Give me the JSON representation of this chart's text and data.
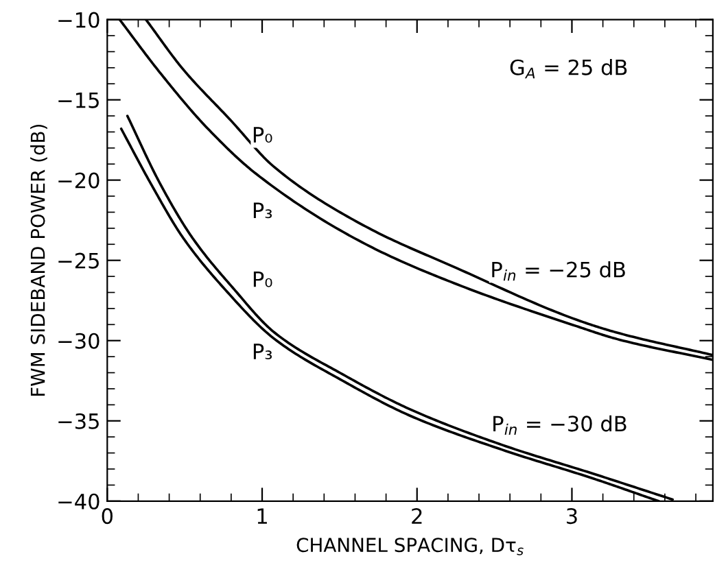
{
  "chart_data": {
    "type": "line",
    "xlabel": "CHANNEL SPACING, Dτ$_{s}$",
    "ylabel": "FWM SIDEBAND POWER (dB)",
    "xlim": [
      0,
      3.91
    ],
    "ylim": [
      -40,
      -10
    ],
    "xticks": [
      0,
      1,
      2,
      3
    ],
    "yticks": [
      -40,
      -35,
      -30,
      -25,
      -20,
      -15,
      -10
    ],
    "grid": false,
    "marker": "none",
    "line_style": "solid",
    "series": [
      {
        "color": "#000000",
        "x": [
          0.25,
          0.49,
          0.79,
          1.08,
          1.67,
          2.26,
          3.03,
          3.29,
          3.91
        ],
        "values": [
          -10,
          -13.1,
          -16.2,
          -19.2,
          -22.9,
          -25.5,
          -28.7,
          -29.5,
          -30.9
        ]
      },
      {
        "color": "#000000",
        "x": [
          0.08,
          0.34,
          0.64,
          0.96,
          1.67,
          2.26,
          3.03,
          3.29,
          3.91
        ],
        "values": [
          -10,
          -13.3,
          -16.7,
          -19.6,
          -24.0,
          -26.5,
          -29.1,
          -29.9,
          -31.2
        ]
      },
      {
        "color": "#000000",
        "x": [
          0.13,
          0.34,
          0.55,
          0.81,
          1.08,
          1.52,
          1.96,
          2.55,
          3.14,
          3.65
        ],
        "values": [
          -16.0,
          -20.2,
          -23.6,
          -26.7,
          -29.5,
          -32.1,
          -34.3,
          -36.5,
          -38.3,
          -39.9
        ]
      },
      {
        "color": "#000000",
        "x": [
          0.09,
          0.28,
          0.49,
          0.75,
          1.08,
          1.52,
          1.96,
          2.55,
          3.14,
          3.56
        ],
        "values": [
          -16.8,
          -20.2,
          -23.6,
          -26.7,
          -29.9,
          -32.5,
          -34.7,
          -36.8,
          -38.6,
          -40
        ]
      }
    ],
    "annotations": [
      "P₀",
      "P₃",
      "P₀",
      "P₃",
      "P$_{in}$ = −25 dB",
      "P$_{in}$ = −30 dB",
      "G$_{A}$ = 25 dB"
    ]
  }
}
